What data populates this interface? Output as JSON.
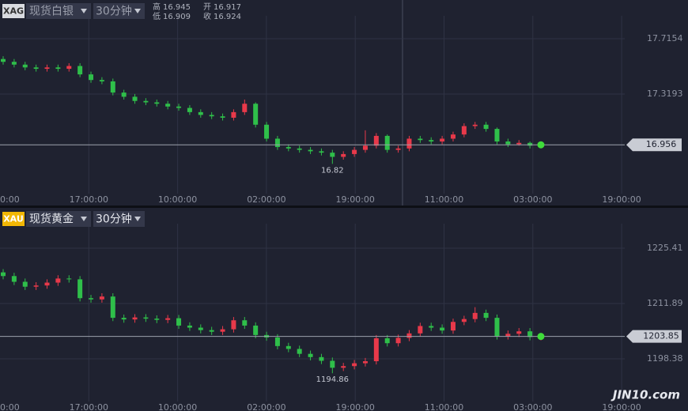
{
  "chart_data": [
    {
      "type": "candlestick",
      "symbol": "XAG",
      "title": "现货白银",
      "interval": "30分钟",
      "quote": {
        "high_label": "高",
        "high": 16.945,
        "open_label": "开",
        "open": 16.917,
        "low_label": "低",
        "low": 16.909,
        "close_label": "收",
        "close": 16.924
      },
      "up_color": "#e8394a",
      "down_color": "#2fbf4a",
      "xtick_labels": [
        "0:00",
        "17:00:00",
        "10:00:00",
        "02:00:00",
        "19:00:00",
        "11:00:00",
        "03:00:00",
        "19:00:00"
      ],
      "ylim": [
        16.635,
        17.834
      ],
      "yticks": [
        17.7154,
        17.3193
      ],
      "open": [
        17.57,
        17.55,
        17.53,
        17.51,
        17.5,
        17.51,
        17.5,
        17.52,
        17.46,
        17.42,
        17.41,
        17.33,
        17.3,
        17.27,
        17.26,
        17.25,
        17.23,
        17.22,
        17.19,
        17.17,
        17.16,
        17.15,
        17.19,
        17.25,
        17.1,
        17.0,
        16.94,
        16.93,
        16.92,
        16.91,
        16.9,
        16.87,
        16.89,
        16.92,
        16.95,
        17.02,
        16.92,
        16.93,
        17.0,
        16.99,
        16.98,
        17.0,
        17.03,
        17.09,
        17.1,
        17.07,
        16.98,
        16.96,
        16.97,
        16.95
      ],
      "high": [
        17.59,
        17.57,
        17.55,
        17.53,
        17.53,
        17.53,
        17.54,
        17.54,
        17.48,
        17.44,
        17.43,
        17.35,
        17.32,
        17.29,
        17.28,
        17.27,
        17.25,
        17.24,
        17.21,
        17.19,
        17.18,
        17.21,
        17.28,
        17.26,
        17.12,
        17.02,
        16.96,
        16.95,
        16.94,
        16.93,
        16.92,
        16.91,
        16.94,
        17.06,
        17.04,
        17.03,
        16.95,
        17.02,
        17.02,
        17.01,
        17.02,
        17.05,
        17.11,
        17.12,
        17.12,
        17.08,
        17.0,
        16.99,
        16.98,
        16.97
      ],
      "low": [
        17.53,
        17.51,
        17.49,
        17.48,
        17.48,
        17.48,
        17.48,
        17.44,
        17.4,
        17.39,
        17.31,
        17.28,
        17.25,
        17.24,
        17.23,
        17.21,
        17.2,
        17.17,
        17.15,
        17.14,
        17.13,
        17.13,
        17.17,
        17.08,
        16.98,
        16.92,
        16.91,
        16.9,
        16.89,
        16.88,
        16.82,
        16.85,
        16.87,
        16.9,
        16.93,
        16.9,
        16.9,
        16.91,
        16.97,
        16.96,
        16.96,
        16.98,
        17.01,
        17.07,
        17.05,
        16.96,
        16.94,
        16.95,
        16.93,
        16.94
      ],
      "close": [
        17.55,
        17.53,
        17.51,
        17.5,
        17.51,
        17.5,
        17.52,
        17.46,
        17.42,
        17.41,
        17.33,
        17.3,
        17.27,
        17.26,
        17.25,
        17.23,
        17.22,
        17.19,
        17.17,
        17.16,
        17.15,
        17.19,
        17.25,
        17.1,
        17.0,
        16.94,
        16.93,
        16.92,
        16.91,
        16.9,
        16.87,
        16.89,
        16.92,
        16.95,
        17.02,
        16.92,
        16.93,
        17.0,
        16.99,
        16.98,
        17.0,
        17.03,
        17.09,
        17.1,
        17.07,
        16.98,
        16.96,
        16.97,
        16.95,
        16.956
      ]
    },
    {
      "type": "candlestick",
      "symbol": "XAU",
      "title": "现货黄金",
      "interval": "30分钟",
      "up_color": "#e8394a",
      "down_color": "#2fbf4a",
      "xtick_labels": [
        "0:00",
        "17:00:00",
        "10:00:00",
        "02:00:00",
        "19:00:00",
        "11:00:00",
        "03:00:00",
        "19:00:00"
      ],
      "ylim": [
        1188.92,
        1229.85
      ],
      "yticks": [
        1225.41,
        1211.89,
        1198.38
      ],
      "open": [
        1219.5,
        1218.6,
        1217.2,
        1216.0,
        1216.3,
        1217.0,
        1218.0,
        1217.8,
        1213.2,
        1212.9,
        1213.6,
        1208.4,
        1208.0,
        1208.5,
        1208.2,
        1207.9,
        1208.3,
        1206.5,
        1206.0,
        1205.4,
        1205.0,
        1205.6,
        1207.8,
        1206.5,
        1204.2,
        1203.6,
        1201.5,
        1200.8,
        1199.6,
        1198.8,
        1197.9,
        1196.2,
        1196.6,
        1197.3,
        1197.8,
        1203.4,
        1202.2,
        1203.5,
        1204.6,
        1206.4,
        1206.0,
        1205.3,
        1207.4,
        1208.1,
        1209.6,
        1208.4,
        1203.9,
        1204.5,
        1205.1,
        1203.7
      ],
      "high": [
        1220.3,
        1219.4,
        1218.0,
        1217.1,
        1217.8,
        1218.8,
        1218.8,
        1218.6,
        1214.0,
        1214.4,
        1214.4,
        1209.2,
        1209.3,
        1209.3,
        1209.0,
        1209.1,
        1209.1,
        1207.3,
        1206.8,
        1206.2,
        1206.4,
        1208.6,
        1208.6,
        1207.3,
        1205.0,
        1204.4,
        1202.3,
        1201.6,
        1200.4,
        1199.6,
        1198.7,
        1197.4,
        1198.1,
        1198.6,
        1204.2,
        1204.2,
        1204.3,
        1205.4,
        1207.2,
        1207.2,
        1206.8,
        1208.2,
        1208.9,
        1211.0,
        1210.4,
        1209.2,
        1205.3,
        1205.9,
        1205.9,
        1204.6
      ],
      "low": [
        1217.8,
        1216.4,
        1215.2,
        1215.2,
        1215.5,
        1216.2,
        1217.0,
        1212.4,
        1212.1,
        1212.1,
        1207.6,
        1207.2,
        1207.2,
        1207.4,
        1207.1,
        1207.1,
        1205.7,
        1205.2,
        1204.6,
        1204.2,
        1204.2,
        1204.8,
        1205.7,
        1203.4,
        1202.8,
        1200.7,
        1200.0,
        1198.8,
        1198.0,
        1197.1,
        1194.86,
        1195.4,
        1195.8,
        1196.5,
        1197.0,
        1201.4,
        1201.4,
        1202.7,
        1203.8,
        1205.2,
        1204.5,
        1204.5,
        1206.6,
        1207.3,
        1207.6,
        1203.1,
        1203.1,
        1203.7,
        1202.9,
        1202.9
      ],
      "close": [
        1218.6,
        1217.2,
        1216.0,
        1216.3,
        1217.0,
        1218.0,
        1217.8,
        1213.2,
        1212.9,
        1213.6,
        1208.4,
        1208.0,
        1208.5,
        1208.2,
        1207.9,
        1208.3,
        1206.5,
        1206.0,
        1205.4,
        1205.0,
        1205.6,
        1207.8,
        1206.5,
        1204.2,
        1203.6,
        1201.5,
        1200.8,
        1199.6,
        1198.8,
        1197.9,
        1196.2,
        1196.6,
        1197.3,
        1197.8,
        1203.4,
        1202.2,
        1203.5,
        1204.6,
        1206.4,
        1206.0,
        1205.3,
        1207.4,
        1208.1,
        1209.6,
        1208.4,
        1203.9,
        1204.5,
        1205.1,
        1203.7,
        1203.85
      ]
    }
  ],
  "watermark": "JIN10.com"
}
